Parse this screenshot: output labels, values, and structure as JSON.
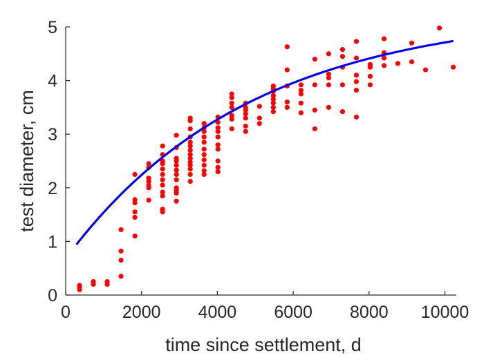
{
  "chart_data": {
    "type": "scatter",
    "title": "",
    "xlabel": "time since settlement, d",
    "ylabel": "test diameter, cm",
    "xlim": [
      0,
      10300
    ],
    "ylim": [
      0,
      5
    ],
    "xticks": [
      0,
      2000,
      4000,
      6000,
      8000,
      10000
    ],
    "yticks": [
      0,
      1,
      2,
      3,
      4,
      5
    ],
    "xtick_labels": [
      "0",
      "2000",
      "4000",
      "6000",
      "8000",
      "10000"
    ],
    "ytick_labels": [
      "0",
      "1",
      "2",
      "3",
      "4",
      "5"
    ],
    "grid": false,
    "colors": {
      "points": "#ff0000",
      "fit_line": "#0000e6",
      "axes": "#262626"
    },
    "series": [
      {
        "kind": "scatter",
        "points": [
          [
            365,
            0.1
          ],
          [
            365,
            0.15
          ],
          [
            365,
            0.18
          ],
          [
            730,
            0.2
          ],
          [
            730,
            0.25
          ],
          [
            1095,
            0.2
          ],
          [
            1095,
            0.25
          ],
          [
            1460,
            0.35
          ],
          [
            1460,
            0.65
          ],
          [
            1460,
            0.82
          ],
          [
            1460,
            1.22
          ],
          [
            1825,
            1.1
          ],
          [
            1825,
            1.45
          ],
          [
            1825,
            1.55
          ],
          [
            1825,
            1.72
          ],
          [
            1825,
            1.78
          ],
          [
            1825,
            2.25
          ],
          [
            2190,
            1.77
          ],
          [
            2190,
            2.0
          ],
          [
            2190,
            2.05
          ],
          [
            2190,
            2.12
          ],
          [
            2190,
            2.18
          ],
          [
            2190,
            2.38
          ],
          [
            2190,
            2.45
          ],
          [
            2555,
            1.55
          ],
          [
            2555,
            1.6
          ],
          [
            2555,
            1.85
          ],
          [
            2555,
            1.92
          ],
          [
            2555,
            2.05
          ],
          [
            2555,
            2.15
          ],
          [
            2555,
            2.25
          ],
          [
            2555,
            2.35
          ],
          [
            2555,
            2.45
          ],
          [
            2555,
            2.5
          ],
          [
            2555,
            2.62
          ],
          [
            2555,
            2.78
          ],
          [
            2920,
            1.75
          ],
          [
            2920,
            1.9
          ],
          [
            2920,
            1.95
          ],
          [
            2920,
            2.0
          ],
          [
            2920,
            2.15
          ],
          [
            2920,
            2.25
          ],
          [
            2920,
            2.33
          ],
          [
            2920,
            2.42
          ],
          [
            2920,
            2.5
          ],
          [
            2920,
            2.55
          ],
          [
            2920,
            2.75
          ],
          [
            2920,
            2.98
          ],
          [
            3285,
            2.12
          ],
          [
            3285,
            2.25
          ],
          [
            3285,
            2.35
          ],
          [
            3285,
            2.42
          ],
          [
            3285,
            2.48
          ],
          [
            3285,
            2.55
          ],
          [
            3285,
            2.62
          ],
          [
            3285,
            2.7
          ],
          [
            3285,
            2.78
          ],
          [
            3285,
            2.85
          ],
          [
            3285,
            2.95
          ],
          [
            3285,
            3.1
          ],
          [
            3285,
            3.25
          ],
          [
            3285,
            3.3
          ],
          [
            3650,
            2.25
          ],
          [
            3650,
            2.32
          ],
          [
            3650,
            2.42
          ],
          [
            3650,
            2.52
          ],
          [
            3650,
            2.62
          ],
          [
            3650,
            2.72
          ],
          [
            3650,
            2.85
          ],
          [
            3650,
            2.95
          ],
          [
            3650,
            3.05
          ],
          [
            3650,
            3.12
          ],
          [
            3650,
            3.2
          ],
          [
            4015,
            2.3
          ],
          [
            4015,
            2.38
          ],
          [
            4015,
            2.5
          ],
          [
            4015,
            2.72
          ],
          [
            4015,
            2.8
          ],
          [
            4015,
            2.95
          ],
          [
            4015,
            3.05
          ],
          [
            4015,
            3.12
          ],
          [
            4015,
            3.22
          ],
          [
            4015,
            3.32
          ],
          [
            4380,
            3.1
          ],
          [
            4380,
            3.28
          ],
          [
            4380,
            3.35
          ],
          [
            4380,
            3.5
          ],
          [
            4380,
            3.58
          ],
          [
            4380,
            3.68
          ],
          [
            4380,
            3.75
          ],
          [
            4745,
            3.05
          ],
          [
            4745,
            3.15
          ],
          [
            4745,
            3.3
          ],
          [
            4745,
            3.38
          ],
          [
            4745,
            3.45
          ],
          [
            4745,
            3.5
          ],
          [
            4745,
            3.58
          ],
          [
            5110,
            3.2
          ],
          [
            5110,
            3.3
          ],
          [
            5110,
            3.52
          ],
          [
            5475,
            3.42
          ],
          [
            5475,
            3.5
          ],
          [
            5475,
            3.58
          ],
          [
            5475,
            3.65
          ],
          [
            5475,
            3.72
          ],
          [
            5475,
            3.8
          ],
          [
            5475,
            3.85
          ],
          [
            5475,
            3.9
          ],
          [
            5840,
            3.5
          ],
          [
            5840,
            3.6
          ],
          [
            5840,
            3.9
          ],
          [
            5840,
            4.2
          ],
          [
            5840,
            4.63
          ],
          [
            6205,
            3.4
          ],
          [
            6205,
            3.58
          ],
          [
            6205,
            3.75
          ],
          [
            6205,
            3.82
          ],
          [
            6205,
            3.92
          ],
          [
            6570,
            3.1
          ],
          [
            6570,
            3.45
          ],
          [
            6570,
            3.92
          ],
          [
            6570,
            4.4
          ],
          [
            6935,
            3.5
          ],
          [
            6935,
            3.92
          ],
          [
            6935,
            4.05
          ],
          [
            6935,
            4.12
          ],
          [
            6935,
            4.5
          ],
          [
            7300,
            3.42
          ],
          [
            7300,
            3.92
          ],
          [
            7300,
            4.25
          ],
          [
            7300,
            4.45
          ],
          [
            7300,
            4.58
          ],
          [
            7665,
            3.32
          ],
          [
            7665,
            3.82
          ],
          [
            7665,
            3.98
          ],
          [
            7665,
            4.1
          ],
          [
            7665,
            4.42
          ],
          [
            7665,
            4.73
          ],
          [
            8030,
            3.92
          ],
          [
            8030,
            4.08
          ],
          [
            8030,
            4.25
          ],
          [
            8030,
            4.3
          ],
          [
            8395,
            4.28
          ],
          [
            8395,
            4.42
          ],
          [
            8395,
            4.52
          ],
          [
            8395,
            4.78
          ],
          [
            8760,
            4.32
          ],
          [
            9125,
            4.35
          ],
          [
            9125,
            4.7
          ],
          [
            9490,
            4.2
          ],
          [
            9855,
            4.98
          ],
          [
            10220,
            4.25
          ]
        ]
      },
      {
        "kind": "fit-line",
        "x_range": [
          300,
          10200
        ],
        "model": "y = 5.3 * (1 - exp(-(x + 667) / 4856))"
      }
    ]
  }
}
